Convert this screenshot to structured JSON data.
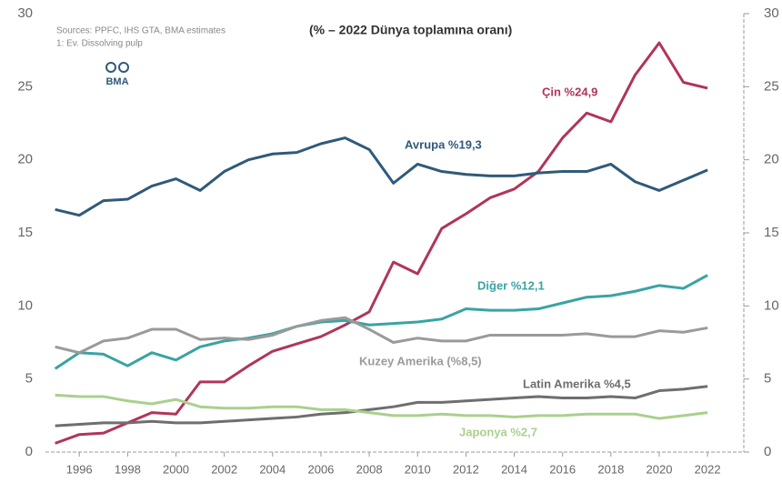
{
  "chart_data": {
    "type": "line",
    "title": "(% – 2022 Dünya toplamına oranı)",
    "source": "Sources: PPFC, IHS GTA, BMA estimates",
    "note": "1: Ev. Dissolving pulp",
    "logo": "BMA",
    "x": [
      1995,
      1996,
      1997,
      1998,
      1999,
      2000,
      2001,
      2002,
      2003,
      2004,
      2005,
      2006,
      2007,
      2008,
      2009,
      2010,
      2011,
      2012,
      2013,
      2014,
      2015,
      2016,
      2017,
      2018,
      2019,
      2020,
      2021,
      2022
    ],
    "xlim": [
      1994.6,
      2023.5
    ],
    "xticks": [
      1996,
      1998,
      2000,
      2002,
      2004,
      2006,
      2008,
      2010,
      2012,
      2014,
      2016,
      2018,
      2020,
      2022
    ],
    "ylim": [
      0,
      30
    ],
    "yticks": [
      0,
      5,
      10,
      15,
      20,
      25,
      30
    ],
    "y2lim": [
      0,
      30
    ],
    "y2ticks": [
      0,
      5,
      10,
      15,
      20,
      25,
      30
    ],
    "grid": false,
    "series": [
      {
        "name": "Çin %24,9",
        "color": "#b0355a",
        "values": [
          0.6,
          1.2,
          1.3,
          2.0,
          2.7,
          2.6,
          4.8,
          4.8,
          5.9,
          6.9,
          7.4,
          7.9,
          8.7,
          9.6,
          13.0,
          12.2,
          15.3,
          16.3,
          17.4,
          18.0,
          19.2,
          21.5,
          23.2,
          22.6,
          25.8,
          28.0,
          25.3,
          24.9
        ]
      },
      {
        "name": "Avrupa %19,3",
        "color": "#2f5a7a",
        "values": [
          16.6,
          16.2,
          17.2,
          17.3,
          18.2,
          18.7,
          17.9,
          19.2,
          20.0,
          20.4,
          20.5,
          21.1,
          21.5,
          20.7,
          18.4,
          19.7,
          19.2,
          19.0,
          18.9,
          18.9,
          19.1,
          19.2,
          19.2,
          19.7,
          18.5,
          17.9,
          18.6,
          19.3
        ]
      },
      {
        "name": "Diğer %12,1",
        "color": "#3aa3a3",
        "values": [
          5.7,
          6.8,
          6.7,
          5.9,
          6.8,
          6.3,
          7.2,
          7.6,
          7.8,
          8.1,
          8.6,
          8.9,
          9.0,
          8.7,
          8.8,
          8.9,
          9.1,
          9.8,
          9.7,
          9.7,
          9.8,
          10.2,
          10.6,
          10.7,
          11.0,
          11.4,
          11.2,
          12.1
        ]
      },
      {
        "name": "Kuzey Amerika (%8,5)",
        "color": "#9a9a9a",
        "values": [
          7.2,
          6.8,
          7.6,
          7.8,
          8.4,
          8.4,
          7.7,
          7.8,
          7.7,
          8.0,
          8.6,
          9.0,
          9.2,
          8.4,
          7.5,
          7.8,
          7.6,
          7.6,
          8.0,
          8.0,
          8.0,
          8.0,
          8.1,
          7.9,
          7.9,
          8.3,
          8.2,
          8.5
        ]
      },
      {
        "name": "Latin Amerika %4,5",
        "color": "#6e6e6e",
        "values": [
          1.8,
          1.9,
          2.0,
          2.0,
          2.1,
          2.0,
          2.0,
          2.1,
          2.2,
          2.3,
          2.4,
          2.6,
          2.7,
          2.9,
          3.1,
          3.4,
          3.4,
          3.5,
          3.6,
          3.7,
          3.8,
          3.7,
          3.7,
          3.8,
          3.7,
          4.2,
          4.3,
          4.5
        ]
      },
      {
        "name": "Japonya %2,7",
        "color": "#a9d08e",
        "values": [
          3.9,
          3.8,
          3.8,
          3.5,
          3.3,
          3.6,
          3.1,
          3.0,
          3.0,
          3.1,
          3.1,
          2.9,
          2.9,
          2.7,
          2.5,
          2.5,
          2.6,
          2.5,
          2.5,
          2.4,
          2.5,
          2.5,
          2.6,
          2.6,
          2.6,
          2.3,
          2.5,
          2.7
        ]
      }
    ]
  }
}
